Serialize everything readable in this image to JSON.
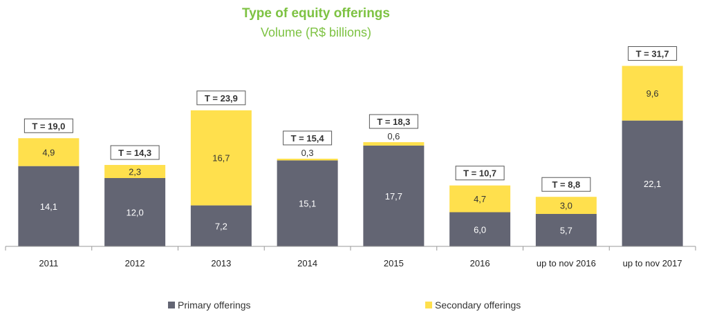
{
  "chart_data": {
    "type": "bar",
    "stacked": true,
    "title": "Type of equity offerings",
    "subtitle": "Volume (R$ billions)",
    "categories": [
      "2011",
      "2012",
      "2013",
      "2014",
      "2015",
      "2016",
      "up to nov 2016",
      "up to nov 2017"
    ],
    "series": [
      {
        "name": "Primary offerings",
        "color": "#636573",
        "values": [
          14.1,
          12.0,
          7.2,
          15.1,
          17.7,
          6.0,
          5.7,
          22.1
        ],
        "labels": [
          "14,1",
          "12,0",
          "7,2",
          "15,1",
          "17,7",
          "6,0",
          "5,7",
          "22,1"
        ]
      },
      {
        "name": "Secondary offerings",
        "color": "#ffe04d",
        "values": [
          4.9,
          2.3,
          16.7,
          0.3,
          0.6,
          4.7,
          3.0,
          9.6
        ],
        "labels": [
          "4,9",
          "2,3",
          "16,7",
          "0,3",
          "0,6",
          "4,7",
          "3,0",
          "9,6"
        ]
      }
    ],
    "totals": [
      "T = 19,0",
      "T = 14,3",
      "T = 23,9",
      "T = 15,4",
      "T = 18,3",
      "T = 10,7",
      "T = 8,8",
      "T = 31,7"
    ],
    "ylim": [
      0,
      33
    ],
    "grid": false,
    "legend_position": "bottom"
  }
}
